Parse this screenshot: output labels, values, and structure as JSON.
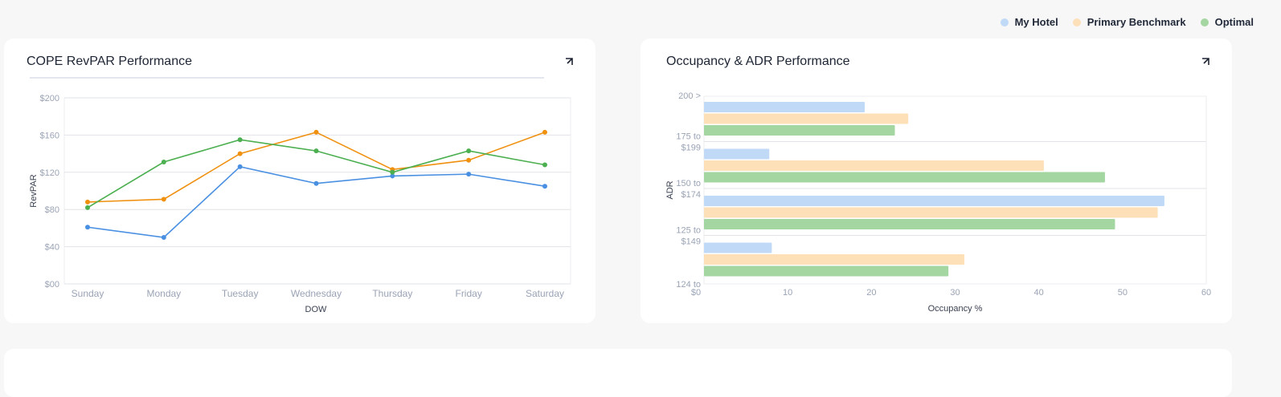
{
  "legend": [
    {
      "label": "My Hotel",
      "color": "#c0d9f7"
    },
    {
      "label": "Primary Benchmark",
      "color": "#fde0b8"
    },
    {
      "label": "Optimal",
      "color": "#a4d6a1"
    }
  ],
  "cards": {
    "revpar": {
      "title": "COPE RevPAR Performance"
    },
    "occadr": {
      "title": "Occupancy & ADR Performance"
    }
  },
  "chart_data": [
    {
      "type": "line",
      "title": "COPE RevPAR Performance",
      "xlabel": "DOW",
      "ylabel": "RevPAR",
      "categories": [
        "Sunday",
        "Monday",
        "Tuesday",
        "Wednesday",
        "Thursday",
        "Friday",
        "Saturday"
      ],
      "ylim": [
        0,
        200
      ],
      "yticks": [
        "$00",
        "$40",
        "$80",
        "$120",
        "$160",
        "$200"
      ],
      "ytick_values": [
        0,
        40,
        80,
        120,
        160,
        200
      ],
      "grid": true,
      "series": [
        {
          "name": "My Hotel",
          "color": "#4a90e2",
          "values": [
            61,
            50,
            126,
            108,
            116,
            118,
            105
          ]
        },
        {
          "name": "Primary Benchmark",
          "color": "#f0900f",
          "values": [
            88,
            91,
            140,
            163,
            123,
            133,
            163
          ]
        },
        {
          "name": "Optimal",
          "color": "#4caf50",
          "values": [
            82,
            131,
            155,
            143,
            120,
            143,
            128
          ]
        }
      ]
    },
    {
      "type": "bar",
      "orientation": "horizontal",
      "title": "Occupancy & ADR Performance",
      "xlabel": "Occupancy %",
      "ylabel": "ADR",
      "categories": [
        "200 >",
        "175 to $199",
        "150 to $174",
        "125 to $149"
      ],
      "xlim": [
        0,
        60
      ],
      "xticks": [
        "$0",
        "10",
        "20",
        "30",
        "40",
        "50",
        "60"
      ],
      "xtick_values": [
        0,
        10,
        20,
        30,
        40,
        50,
        60
      ],
      "bottom_label": "124 to",
      "series": [
        {
          "name": "My Hotel",
          "color": "#c0d9f7",
          "values": [
            19.2,
            7.8,
            55,
            8.1
          ]
        },
        {
          "name": "Primary Benchmark",
          "color": "#fde0b8",
          "values": [
            24.4,
            40.6,
            54.2,
            31.1
          ]
        },
        {
          "name": "Optimal",
          "color": "#a4d6a1",
          "values": [
            22.8,
            47.9,
            49.1,
            29.2
          ]
        }
      ]
    }
  ]
}
